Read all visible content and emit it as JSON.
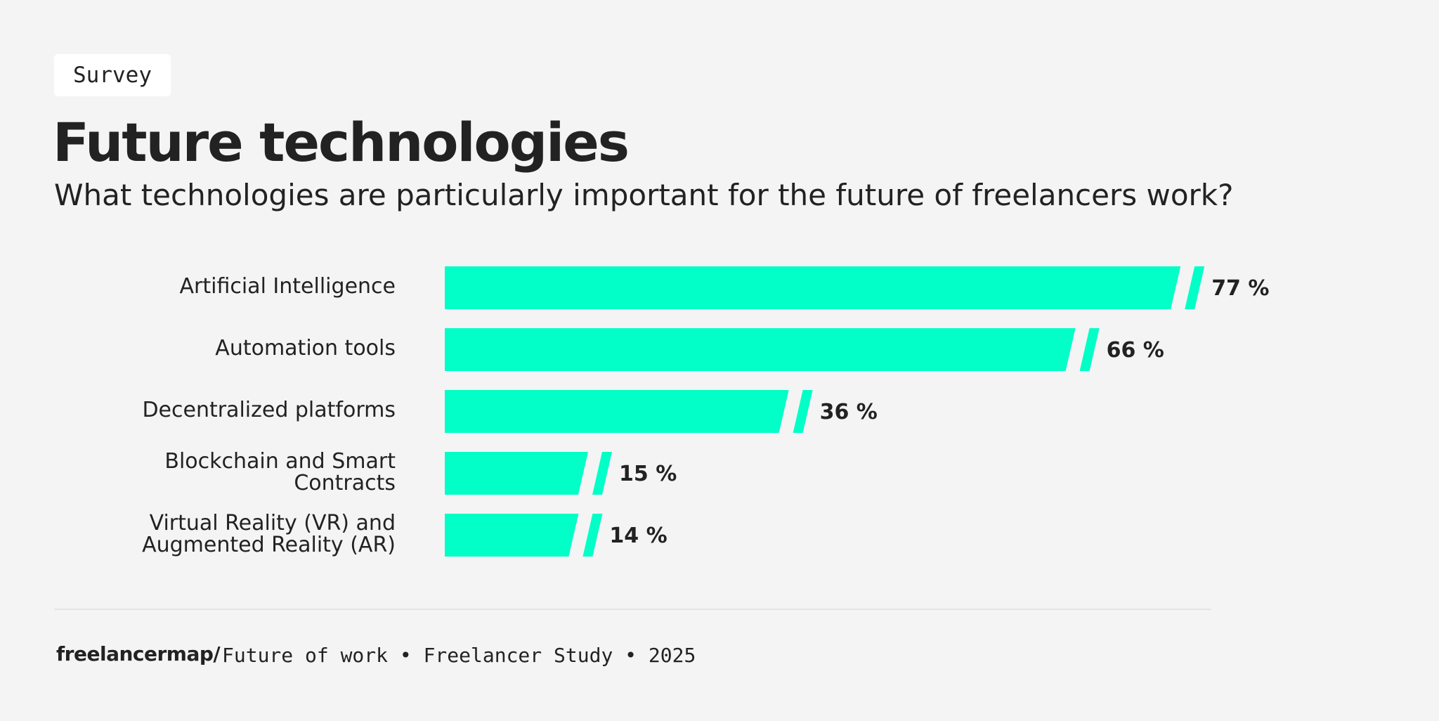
{
  "tag": "Survey",
  "chart_data": {
    "type": "bar",
    "orientation": "horizontal",
    "title": "Future technologies",
    "subtitle": "What technologies are particularly important for the future of freelancers work?",
    "categories": [
      "Artificial Intelligence",
      "Automation tools",
      "Decentralized platforms",
      "Blockchain and Smart Contracts",
      "Virtual Reality (VR) and Augmented Reality (AR)"
    ],
    "values": [
      77,
      66,
      36,
      15,
      14
    ],
    "value_labels": [
      "77 %",
      "66 %",
      "36 %",
      "15 %",
      "14 %"
    ],
    "color": "#02ffc7"
  },
  "footer": {
    "brand": "freelancermap/",
    "text": "Future of work • Freelancer Study • 2025"
  }
}
